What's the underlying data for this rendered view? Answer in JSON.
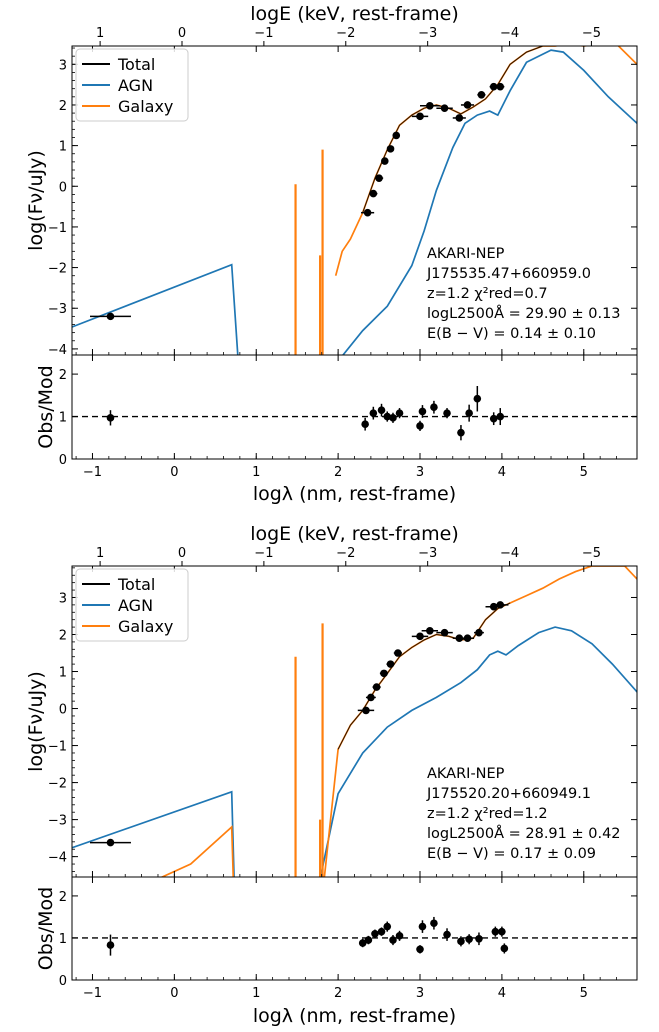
{
  "chart_data": [
    {
      "type": "line",
      "panel": "top",
      "top_axis_label": "logE (keV, rest-frame)",
      "top_ticks": [
        "1",
        "0",
        "−1",
        "−2",
        "−3",
        "−4",
        "−5"
      ],
      "xlabel": "logλ (nm, rest-frame)",
      "xticks": [
        "−1",
        "0",
        "1",
        "2",
        "3",
        "4",
        "5"
      ],
      "xlim": [
        -1.25,
        5.65
      ],
      "ylabel": "log(Fν/uJy)",
      "yticks": [
        "−4",
        "−3",
        "−2",
        "−1",
        "0",
        "1",
        "2",
        "3"
      ],
      "ylim": [
        -4.15,
        3.45
      ],
      "legend": {
        "placement": "top-left",
        "entries": [
          {
            "label": "Total",
            "color": "#000000"
          },
          {
            "label": "AGN",
            "color": "#1f77b4"
          },
          {
            "label": "Galaxy",
            "color": "#ff7f0e"
          }
        ]
      },
      "annotation": [
        "AKARI-NEP",
        "J175535.47+660959.0",
        "z=1.2 χ²red=0.7",
        "logL2500Å = 29.90 ± 0.13",
        "E(B − V) = 0.14 ± 0.10"
      ],
      "agn_curve": {
        "x": [
          -1.3,
          0.7,
          0.78,
          2.0,
          2.3,
          2.6,
          2.9,
          3.05,
          3.2,
          3.4,
          3.55,
          3.7,
          3.85,
          3.95,
          4.1,
          4.3,
          4.6,
          4.75,
          5.0,
          5.3,
          5.65
        ],
        "y": [
          -3.5,
          -1.93,
          -4.3,
          -4.3,
          -3.55,
          -2.95,
          -1.95,
          -1.1,
          -0.1,
          0.95,
          1.55,
          1.75,
          1.85,
          1.75,
          2.35,
          3.05,
          3.35,
          3.3,
          2.85,
          2.2,
          1.55
        ]
      },
      "galaxy_curve": {
        "x": [
          1.97,
          2.05,
          2.15,
          2.3,
          2.45,
          2.6,
          2.75,
          2.9,
          3.05,
          3.2,
          3.35,
          3.5,
          3.65,
          3.8,
          3.95,
          4.1,
          4.3,
          4.5,
          4.65,
          4.8,
          5.0,
          5.2,
          5.4,
          5.65
        ],
        "y": [
          -2.2,
          -1.6,
          -1.3,
          -0.65,
          0.2,
          0.9,
          1.5,
          1.75,
          1.92,
          2.0,
          1.92,
          1.78,
          1.95,
          2.15,
          2.5,
          3.0,
          3.3,
          3.45,
          3.45,
          3.5,
          3.45,
          3.5,
          3.5,
          3.0
        ]
      },
      "galaxy_lines": [
        {
          "x": 1.48,
          "y": 0.05
        },
        {
          "x": 1.78,
          "y": -1.7
        },
        {
          "x": 1.81,
          "y": 0.9
        }
      ],
      "total_curve": {
        "x": [
          2.3,
          2.45,
          2.6,
          2.75,
          2.9,
          3.05,
          3.2,
          3.35,
          3.5,
          3.65,
          3.8,
          3.95,
          4.1,
          4.3,
          4.5,
          4.65
        ],
        "y": [
          -0.65,
          0.2,
          0.9,
          1.5,
          1.75,
          1.92,
          2.0,
          1.92,
          1.78,
          1.95,
          2.15,
          2.5,
          3.0,
          3.3,
          3.45,
          3.45
        ]
      },
      "points": [
        {
          "x": -0.78,
          "y": -3.2,
          "xerr": 0.25
        },
        {
          "x": 2.36,
          "y": -0.65,
          "xerr": 0.08
        },
        {
          "x": 2.43,
          "y": -0.18,
          "xerr": 0.05
        },
        {
          "x": 2.5,
          "y": 0.2,
          "xerr": 0.05
        },
        {
          "x": 2.57,
          "y": 0.62,
          "xerr": 0.04
        },
        {
          "x": 2.64,
          "y": 0.92,
          "xerr": 0.04
        },
        {
          "x": 2.71,
          "y": 1.25,
          "xerr": 0.04
        },
        {
          "x": 3.0,
          "y": 1.72,
          "xerr": 0.1
        },
        {
          "x": 3.12,
          "y": 1.98,
          "xerr": 0.12
        },
        {
          "x": 3.3,
          "y": 1.92,
          "xerr": 0.1
        },
        {
          "x": 3.48,
          "y": 1.68,
          "xerr": 0.08
        },
        {
          "x": 3.58,
          "y": 2.0,
          "xerr": 0.08
        },
        {
          "x": 3.75,
          "y": 2.25,
          "xerr": 0.05
        },
        {
          "x": 3.9,
          "y": 2.45,
          "xerr": 0.05
        },
        {
          "x": 3.98,
          "y": 2.45,
          "xerr": 0.05
        }
      ],
      "ratio": {
        "ylabel": "Obs/Mod",
        "yticks": [
          "0",
          "1",
          "2"
        ],
        "ylim": [
          0,
          2.45
        ],
        "reference": 1,
        "points": [
          {
            "x": -0.78,
            "y": 0.97,
            "yerr": 0.18
          },
          {
            "x": 2.33,
            "y": 0.82,
            "yerr": 0.15
          },
          {
            "x": 2.43,
            "y": 1.08,
            "yerr": 0.15
          },
          {
            "x": 2.53,
            "y": 1.15,
            "yerr": 0.15
          },
          {
            "x": 2.6,
            "y": 1.0,
            "yerr": 0.12
          },
          {
            "x": 2.67,
            "y": 0.97,
            "yerr": 0.12
          },
          {
            "x": 2.75,
            "y": 1.08,
            "yerr": 0.12
          },
          {
            "x": 3.0,
            "y": 0.78,
            "yerr": 0.12
          },
          {
            "x": 3.03,
            "y": 1.12,
            "yerr": 0.15
          },
          {
            "x": 3.17,
            "y": 1.22,
            "yerr": 0.15
          },
          {
            "x": 3.33,
            "y": 1.08,
            "yerr": 0.12
          },
          {
            "x": 3.5,
            "y": 0.62,
            "yerr": 0.18
          },
          {
            "x": 3.6,
            "y": 1.08,
            "yerr": 0.2
          },
          {
            "x": 3.7,
            "y": 1.42,
            "yerr": 0.3
          },
          {
            "x": 3.9,
            "y": 0.95,
            "yerr": 0.15
          },
          {
            "x": 3.98,
            "y": 1.0,
            "yerr": 0.2
          }
        ]
      }
    },
    {
      "type": "line",
      "panel": "bottom",
      "top_axis_label": "logE (keV, rest-frame)",
      "top_ticks": [
        "1",
        "0",
        "−1",
        "−2",
        "−3",
        "−4",
        "−5"
      ],
      "xlabel": "logλ (nm, rest-frame)",
      "xticks": [
        "−1",
        "0",
        "1",
        "2",
        "3",
        "4",
        "5"
      ],
      "xlim": [
        -1.25,
        5.65
      ],
      "ylabel": "log(Fν/uJy)",
      "yticks": [
        "−4",
        "−3",
        "−2",
        "−1",
        "0",
        "1",
        "2",
        "3"
      ],
      "ylim": [
        -4.55,
        3.85
      ],
      "legend": {
        "placement": "top-left",
        "entries": [
          {
            "label": "Total",
            "color": "#000000"
          },
          {
            "label": "AGN",
            "color": "#1f77b4"
          },
          {
            "label": "Galaxy",
            "color": "#ff7f0e"
          }
        ]
      },
      "annotation": [
        "AKARI-NEP",
        "J175520.20+660949.1",
        "z=1.2 χ²red=1.2",
        "logL2500Å = 28.91 ± 0.42",
        "E(B − V) = 0.17 ± 0.09"
      ],
      "agn_curve": {
        "x": [
          -1.3,
          0.7,
          0.73,
          1.78,
          2.0,
          2.3,
          2.6,
          2.9,
          3.2,
          3.5,
          3.7,
          3.85,
          3.95,
          4.05,
          4.2,
          4.45,
          4.65,
          4.85,
          5.1,
          5.35,
          5.65
        ],
        "y": [
          -3.8,
          -2.25,
          -4.6,
          -4.6,
          -2.3,
          -1.2,
          -0.5,
          -0.05,
          0.3,
          0.7,
          1.05,
          1.45,
          1.55,
          1.45,
          1.7,
          2.05,
          2.2,
          2.1,
          1.75,
          1.2,
          0.45
        ]
      },
      "galaxy_curve": {
        "x": [
          -0.2,
          0.2,
          0.7,
          0.72,
          1.83,
          2.0,
          2.15,
          2.3,
          2.45,
          2.6,
          2.75,
          2.9,
          3.05,
          3.2,
          3.35,
          3.5,
          3.65,
          3.8,
          3.95,
          4.1,
          4.3,
          4.5,
          4.7,
          4.9,
          5.1,
          5.3,
          5.5,
          5.65
        ],
        "y": [
          -4.6,
          -4.2,
          -3.2,
          -4.6,
          -4.6,
          -1.1,
          -0.45,
          -0.05,
          0.5,
          0.95,
          1.4,
          1.65,
          1.85,
          2.0,
          1.95,
          1.85,
          1.9,
          2.4,
          2.7,
          2.85,
          3.05,
          3.25,
          3.5,
          3.7,
          3.85,
          3.85,
          3.85,
          3.5
        ]
      },
      "galaxy_lines": [
        {
          "x": 1.48,
          "y": 1.4
        },
        {
          "x": 1.78,
          "y": -3.0
        },
        {
          "x": 1.81,
          "y": 2.3
        }
      ],
      "total_curve": {
        "x": [
          2.0,
          2.15,
          2.3,
          2.45,
          2.6,
          2.75,
          2.9,
          3.05,
          3.2,
          3.35,
          3.5,
          3.65,
          3.8,
          3.95,
          4.1
        ],
        "y": [
          -1.1,
          -0.45,
          -0.05,
          0.5,
          0.95,
          1.4,
          1.65,
          1.85,
          2.0,
          1.95,
          1.85,
          1.9,
          2.4,
          2.7,
          2.85
        ]
      },
      "points": [
        {
          "x": -0.78,
          "y": -3.62,
          "xerr": 0.25
        },
        {
          "x": 2.34,
          "y": -0.05,
          "xerr": 0.1
        },
        {
          "x": 2.4,
          "y": 0.3,
          "xerr": 0.06
        },
        {
          "x": 2.47,
          "y": 0.58,
          "xerr": 0.05
        },
        {
          "x": 2.56,
          "y": 0.95,
          "xerr": 0.05
        },
        {
          "x": 2.64,
          "y": 1.2,
          "xerr": 0.05
        },
        {
          "x": 2.73,
          "y": 1.5,
          "xerr": 0.05
        },
        {
          "x": 3.0,
          "y": 1.95,
          "xerr": 0.1
        },
        {
          "x": 3.12,
          "y": 2.1,
          "xerr": 0.1
        },
        {
          "x": 3.3,
          "y": 2.05,
          "xerr": 0.1
        },
        {
          "x": 3.48,
          "y": 1.9,
          "xerr": 0.08
        },
        {
          "x": 3.58,
          "y": 1.9,
          "xerr": 0.08
        },
        {
          "x": 3.72,
          "y": 2.05,
          "xerr": 0.06
        },
        {
          "x": 3.9,
          "y": 2.75,
          "xerr": 0.1
        },
        {
          "x": 3.98,
          "y": 2.8,
          "xerr": 0.1
        }
      ],
      "ratio": {
        "ylabel": "Obs/Mod",
        "yticks": [
          "0",
          "1",
          "2"
        ],
        "ylim": [
          0,
          2.45
        ],
        "reference": 1,
        "points": [
          {
            "x": -0.78,
            "y": 0.83,
            "yerr": 0.25
          },
          {
            "x": 2.3,
            "y": 0.88,
            "yerr": 0.1
          },
          {
            "x": 2.37,
            "y": 0.95,
            "yerr": 0.1
          },
          {
            "x": 2.45,
            "y": 1.1,
            "yerr": 0.1
          },
          {
            "x": 2.53,
            "y": 1.15,
            "yerr": 0.1
          },
          {
            "x": 2.6,
            "y": 1.27,
            "yerr": 0.12
          },
          {
            "x": 2.67,
            "y": 0.95,
            "yerr": 0.12
          },
          {
            "x": 2.75,
            "y": 1.05,
            "yerr": 0.12
          },
          {
            "x": 3.0,
            "y": 0.73,
            "yerr": 0.1
          },
          {
            "x": 3.03,
            "y": 1.27,
            "yerr": 0.15
          },
          {
            "x": 3.17,
            "y": 1.35,
            "yerr": 0.15
          },
          {
            "x": 3.33,
            "y": 1.08,
            "yerr": 0.15
          },
          {
            "x": 3.5,
            "y": 0.92,
            "yerr": 0.12
          },
          {
            "x": 3.6,
            "y": 0.97,
            "yerr": 0.12
          },
          {
            "x": 3.72,
            "y": 0.98,
            "yerr": 0.15
          },
          {
            "x": 3.92,
            "y": 1.15,
            "yerr": 0.12
          },
          {
            "x": 4.0,
            "y": 1.15,
            "yerr": 0.12
          },
          {
            "x": 4.03,
            "y": 0.75,
            "yerr": 0.12
          }
        ]
      }
    }
  ]
}
